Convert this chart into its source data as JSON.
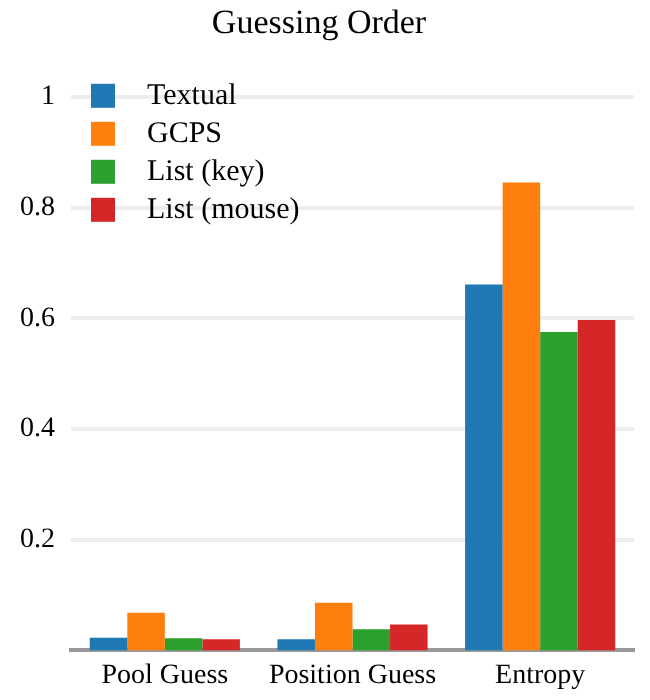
{
  "chart_data": {
    "type": "bar",
    "title": "Guessing Order",
    "categories": [
      "Pool Guess",
      "Position Guess",
      "Entropy"
    ],
    "series": [
      {
        "name": "Textual",
        "color": "#1f77b4",
        "values": [
          0.023,
          0.02,
          0.661
        ]
      },
      {
        "name": "GCPS",
        "color": "#ff7f0e",
        "values": [
          0.068,
          0.086,
          0.845
        ]
      },
      {
        "name": "List (key)",
        "color": "#2ca02c",
        "values": [
          0.022,
          0.038,
          0.575
        ]
      },
      {
        "name": "List (mouse)",
        "color": "#d62728",
        "values": [
          0.02,
          0.047,
          0.597
        ]
      }
    ],
    "ylim": [
      0,
      1
    ],
    "yticks": [
      0.2,
      0.4,
      0.6,
      0.8,
      1
    ],
    "grid": "y",
    "legend": "top left"
  }
}
